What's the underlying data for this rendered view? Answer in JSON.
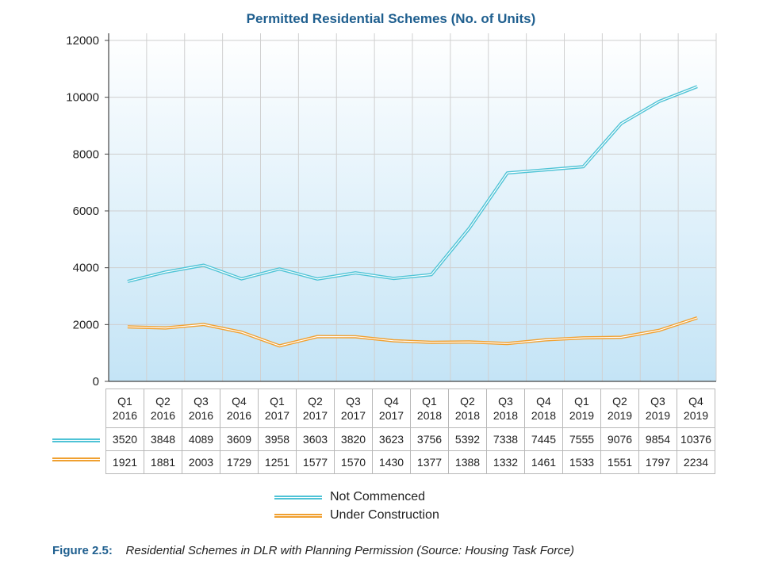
{
  "chart_data": {
    "type": "line",
    "title": "Permitted Residential Schemes (No. of Units)",
    "categories": [
      [
        "Q1",
        "2016"
      ],
      [
        "Q2",
        "2016"
      ],
      [
        "Q3",
        "2016"
      ],
      [
        "Q4",
        "2016"
      ],
      [
        "Q1",
        "2017"
      ],
      [
        "Q2",
        "2017"
      ],
      [
        "Q3",
        "2017"
      ],
      [
        "Q4",
        "2017"
      ],
      [
        "Q1",
        "2018"
      ],
      [
        "Q2",
        "2018"
      ],
      [
        "Q3",
        "2018"
      ],
      [
        "Q4",
        "2018"
      ],
      [
        "Q1",
        "2019"
      ],
      [
        "Q2",
        "2019"
      ],
      [
        "Q3",
        "2019"
      ],
      [
        "Q4",
        "2019"
      ]
    ],
    "series": [
      {
        "name": "Not Commenced",
        "color": "#4fc3d6",
        "values": [
          3520,
          3848,
          4089,
          3609,
          3958,
          3603,
          3820,
          3623,
          3756,
          5392,
          7338,
          7445,
          7555,
          9076,
          9854,
          10376
        ]
      },
      {
        "name": "Under Construction",
        "color": "#f0a030",
        "values": [
          1921,
          1881,
          2003,
          1729,
          1251,
          1577,
          1570,
          1430,
          1377,
          1388,
          1332,
          1461,
          1533,
          1551,
          1797,
          2234
        ]
      }
    ],
    "ylim": [
      0,
      12000
    ],
    "yticks": [
      "0",
      "2000",
      "4000",
      "6000",
      "8000",
      "10000",
      "12000"
    ],
    "grid": true,
    "legend": "bottom"
  },
  "caption": {
    "label": "Figure 2.5:",
    "text": "Residential Schemes in DLR with Planning Permission (Source: Housing Task Force)"
  }
}
